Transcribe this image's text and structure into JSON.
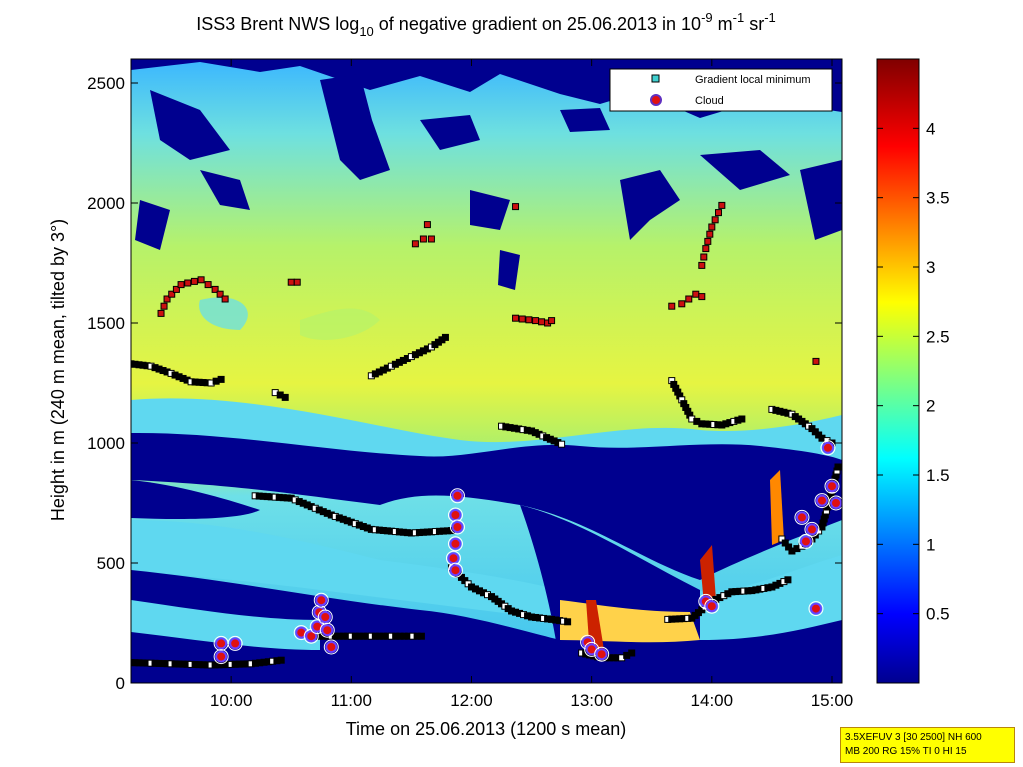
{
  "chart_data": {
    "type": "heatmap",
    "title": {
      "prefix": "ISS3 Brent NWS log",
      "sub": "10",
      "middle": " of negative gradient on 25.06.2013 in 10",
      "sup1": "-9",
      "unit1": " m",
      "sup2": "-1",
      "unit2": " sr",
      "sup3": "-1"
    },
    "xlabel": "Time on 25.06.2013 (1200 s mean)",
    "ylabel": "Height in m (240 m mean, tilted by 3°)",
    "xlim": [
      "09:10",
      "15:05"
    ],
    "ylim": [
      0,
      2600
    ],
    "x_ticks": [
      "10:00",
      "11:00",
      "12:00",
      "13:00",
      "14:00",
      "15:00"
    ],
    "y_ticks": [
      "0",
      "500",
      "1000",
      "1500",
      "2000",
      "2500"
    ],
    "colorbar": {
      "range": [
        0,
        4.5
      ],
      "ticks": [
        "0.5",
        "1",
        "1.5",
        "2",
        "2.5",
        "3",
        "3.5",
        "4"
      ],
      "colormap": "jet"
    },
    "legend": {
      "placement": "top-right",
      "entries": [
        {
          "label": "Gradient local minimum",
          "marker": "square",
          "color": "#40d0d0"
        },
        {
          "label": "Cloud",
          "marker": "circle",
          "color": "#e01010"
        }
      ]
    },
    "series": [
      {
        "name": "Gradient local minimum",
        "marker": "square",
        "segments": [
          {
            "x": [
              "09:10",
              "09:20",
              "09:30",
              "09:40",
              "09:50",
              "09:55"
            ],
            "y": [
              1330,
              1320,
              1290,
              1255,
              1250,
              1265
            ]
          },
          {
            "x": [
              "10:22",
              "10:27"
            ],
            "y": [
              1210,
              1190
            ]
          },
          {
            "x": [
              "10:12",
              "10:30",
              "10:50",
              "11:10",
              "11:30",
              "11:50"
            ],
            "y": [
              780,
              770,
              700,
              640,
              625,
              635
            ]
          },
          {
            "x": [
              "11:10",
              "11:20",
              "11:30",
              "11:40",
              "11:47"
            ],
            "y": [
              1280,
              1320,
              1360,
              1400,
              1440
            ]
          },
          {
            "x": [
              "12:15",
              "12:30",
              "12:45"
            ],
            "y": [
              1070,
              1050,
              995
            ]
          },
          {
            "x": [
              "11:50",
              "12:00",
              "12:10",
              "12:20",
              "12:30",
              "12:40",
              "12:48"
            ],
            "y": [
              480,
              400,
              360,
              300,
              275,
              265,
              255
            ]
          },
          {
            "x": [
              "09:10",
              "09:30",
              "09:50",
              "10:10",
              "10:25"
            ],
            "y": [
              85,
              80,
              75,
              80,
              95
            ]
          },
          {
            "x": [
              "10:40",
              "11:00",
              "11:20",
              "11:35"
            ],
            "y": [
              195,
              195,
              195,
              195
            ]
          },
          {
            "x": [
              "12:55",
              "13:05",
              "13:15",
              "13:20"
            ],
            "y": [
              125,
              105,
              105,
              125
            ]
          },
          {
            "x": [
              "13:38",
              "13:50",
              "14:00",
              "14:10",
              "14:20",
              "14:30",
              "14:38"
            ],
            "y": [
              265,
              270,
              340,
              380,
              385,
              400,
              430
            ]
          },
          {
            "x": [
              "13:40",
              "13:45",
              "13:50",
              "13:55",
              "14:05",
              "14:15"
            ],
            "y": [
              1260,
              1180,
              1100,
              1080,
              1075,
              1100
            ]
          },
          {
            "x": [
              "14:30",
              "14:40",
              "14:50",
              "14:55",
              "15:00"
            ],
            "y": [
              1140,
              1120,
              1060,
              1020,
              1000
            ]
          },
          {
            "x": [
              "14:35",
              "14:40",
              "14:45",
              "14:50",
              "14:55",
              "15:00",
              "15:03"
            ],
            "y": [
              600,
              550,
              570,
              600,
              650,
              800,
              900
            ]
          }
        ]
      },
      {
        "name": "Cloud",
        "marker": "circle",
        "points": [
          {
            "x": "09:55",
            "y": 165
          },
          {
            "x": "10:02",
            "y": 165
          },
          {
            "x": "09:55",
            "y": 110
          },
          {
            "x": "10:35",
            "y": 210
          },
          {
            "x": "10:40",
            "y": 195
          },
          {
            "x": "10:43",
            "y": 235
          },
          {
            "x": "10:44",
            "y": 295
          },
          {
            "x": "10:45",
            "y": 345
          },
          {
            "x": "10:47",
            "y": 275
          },
          {
            "x": "10:48",
            "y": 220
          },
          {
            "x": "10:50",
            "y": 150
          },
          {
            "x": "11:53",
            "y": 780
          },
          {
            "x": "11:52",
            "y": 700
          },
          {
            "x": "11:53",
            "y": 650
          },
          {
            "x": "11:52",
            "y": 580
          },
          {
            "x": "11:51",
            "y": 520
          },
          {
            "x": "11:52",
            "y": 470
          },
          {
            "x": "12:58",
            "y": 170
          },
          {
            "x": "13:00",
            "y": 140
          },
          {
            "x": "13:05",
            "y": 120
          },
          {
            "x": "13:57",
            "y": 340
          },
          {
            "x": "14:00",
            "y": 320
          },
          {
            "x": "14:45",
            "y": 690
          },
          {
            "x": "14:47",
            "y": 590
          },
          {
            "x": "14:50",
            "y": 640
          },
          {
            "x": "14:55",
            "y": 760
          },
          {
            "x": "14:58",
            "y": 980
          },
          {
            "x": "15:00",
            "y": 820
          },
          {
            "x": "15:02",
            "y": 750
          },
          {
            "x": "14:52",
            "y": 310
          }
        ]
      },
      {
        "name": "upper markers",
        "marker": "square-red",
        "segments": [
          {
            "x": [
              "09:25",
              "09:28",
              "09:35",
              "09:45",
              "09:52",
              "09:57"
            ],
            "y": [
              1540,
              1600,
              1660,
              1680,
              1640,
              1600
            ]
          },
          {
            "x": [
              "10:30",
              "10:33"
            ],
            "y": [
              1670,
              1670
            ]
          },
          {
            "x": [
              "11:32",
              "11:36",
              "11:40"
            ],
            "y": [
              1830,
              1850,
              1850
            ]
          },
          {
            "x": [
              "11:38"
            ],
            "y": [
              1910
            ]
          },
          {
            "x": [
              "12:22",
              "12:32",
              "12:38",
              "12:40"
            ],
            "y": [
              1520,
              1510,
              1500,
              1510
            ]
          },
          {
            "x": [
              "12:22"
            ],
            "y": [
              1985
            ]
          },
          {
            "x": [
              "13:40",
              "13:45",
              "13:52",
              "13:55"
            ],
            "y": [
              1570,
              1580,
              1620,
              1610
            ]
          },
          {
            "x": [
              "13:55",
              "13:57",
              "14:00",
              "14:05"
            ],
            "y": [
              1740,
              1810,
              1900,
              1990
            ]
          },
          {
            "x": [
              "14:52"
            ],
            "y": [
              1340
            ]
          }
        ]
      }
    ]
  },
  "info_box": {
    "line1": "3.5XEFUV 3 [30 2500] NH 600",
    "line2": "MB 200 RG 15% TI 0 HI 15"
  }
}
